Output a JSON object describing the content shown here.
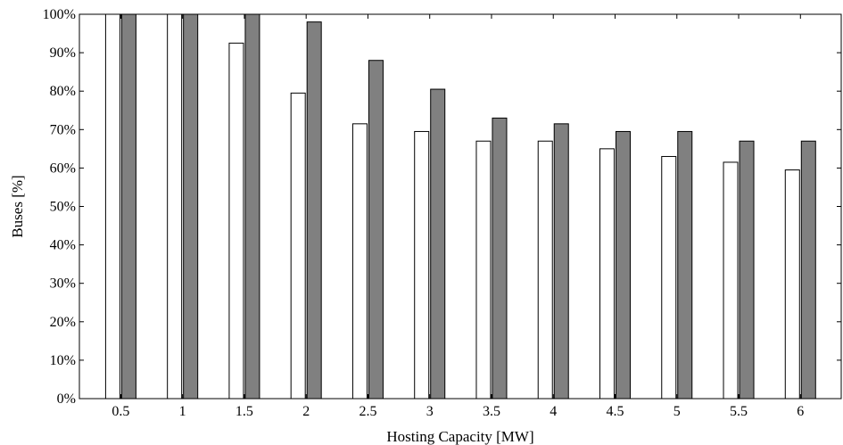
{
  "chart_data": {
    "type": "bar",
    "title": "",
    "xlabel": "Hosting Capacity [MW]",
    "ylabel": "Buses [%]",
    "categories": [
      "0.5",
      "1",
      "1.5",
      "2",
      "2.5",
      "3",
      "3.5",
      "4",
      "4.5",
      "5",
      "5.5",
      "6"
    ],
    "y_tick_labels": [
      "0%",
      "10%",
      "20%",
      "30%",
      "40%",
      "50%",
      "60%",
      "70%",
      "80%",
      "90%",
      "100%"
    ],
    "ylim": [
      0,
      100
    ],
    "grid": false,
    "legend": "none",
    "series": [
      {
        "color": "#ffffff",
        "values": [
          100,
          100,
          92.5,
          79.5,
          71.5,
          69.5,
          67,
          67,
          65,
          63,
          61.5,
          59.5
        ]
      },
      {
        "color": "#808080",
        "values": [
          100,
          100,
          100,
          98,
          88,
          80.5,
          73,
          71.5,
          69.5,
          69.5,
          67,
          67
        ]
      }
    ]
  }
}
